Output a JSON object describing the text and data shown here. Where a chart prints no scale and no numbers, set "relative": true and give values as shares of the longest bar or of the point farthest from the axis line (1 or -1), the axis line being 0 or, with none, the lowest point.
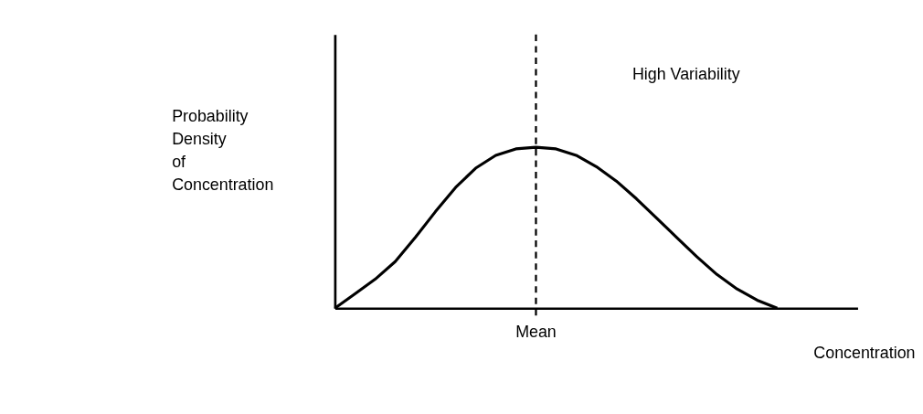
{
  "chart_data": {
    "type": "line",
    "relative": true,
    "title": "High Variability",
    "xlabel": "Concentration",
    "ylabel": "Probability Density of Concentration",
    "categories": [
      null,
      null,
      null,
      null,
      null,
      null,
      null,
      null,
      null,
      null,
      null,
      null,
      null,
      null,
      null,
      null,
      null,
      null,
      null,
      null,
      null,
      null,
      null,
      null,
      null
    ],
    "series": [
      {
        "color": "#000000",
        "values": [
          0,
          0.09,
          0.18,
          0.29,
          0.44,
          0.6,
          0.75,
          0.87,
          0.95,
          0.99,
          1.0,
          0.99,
          0.95,
          0.88,
          0.79,
          0.68,
          0.56,
          0.44,
          0.32,
          0.21,
          0.12,
          0.05,
          0,
          null,
          null
        ]
      }
    ],
    "annotations": [
      "Mean"
    ],
    "grid": false,
    "marker": "none",
    "line_style": "solid"
  }
}
